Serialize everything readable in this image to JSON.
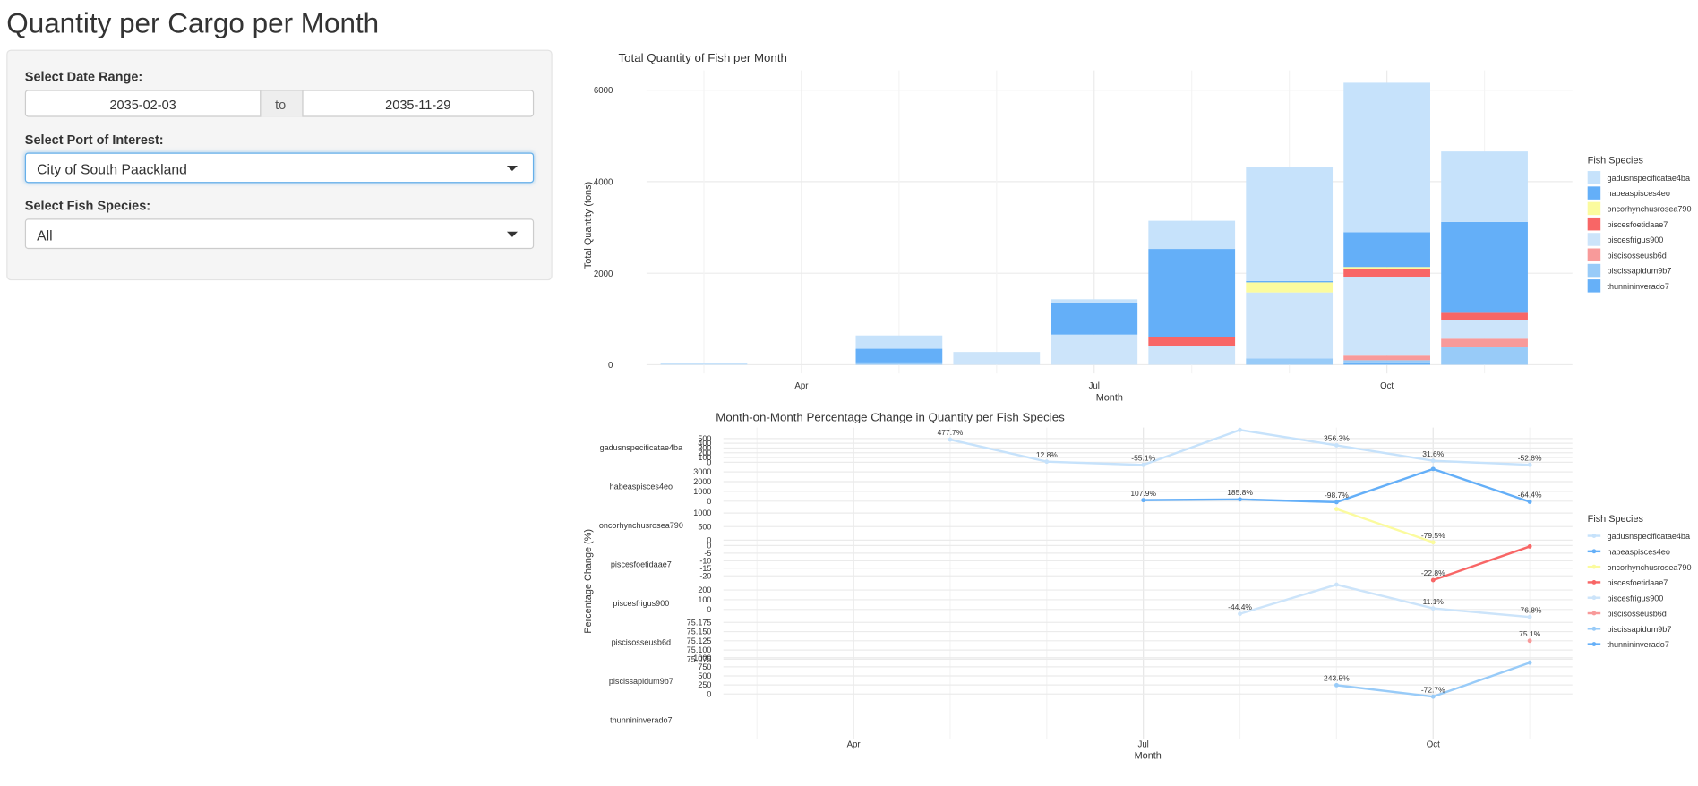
{
  "header": {
    "title": "Quantity per Cargo per Month"
  },
  "sidebar": {
    "date_range": {
      "label": "Select Date Range:",
      "start": "2035-02-03",
      "separator": "to",
      "end": "2035-11-29"
    },
    "port": {
      "label": "Select Port of Interest:",
      "value": "City of South Paackland"
    },
    "species": {
      "label": "Select Fish Species:",
      "value": "All"
    }
  },
  "chart_data": [
    {
      "type": "bar",
      "stacked": true,
      "title": "Total Quantity of Fish per Month",
      "x_label": "Month",
      "y_label": "Total Quantity (tons)",
      "categories": [
        null,
        "Apr",
        null,
        null,
        "Jul",
        null,
        null,
        "Oct",
        null
      ],
      "ylim": [
        -190,
        6430
      ],
      "yticks": [
        0,
        2000,
        4000,
        6000
      ],
      "grid": true,
      "legend": "right",
      "legend_title": "Fish Species",
      "series": [
        {
          "name": "gadusnspecificatae4ba",
          "color": "#c6e2fb",
          "values": [
            30,
            null,
            290,
            null,
            80,
            615,
            2480,
            3265,
            1540
          ]
        },
        {
          "name": "habeaspisces4eo",
          "color": "#64aff8",
          "values": [
            null,
            null,
            300,
            null,
            690,
            1915,
            30,
            760,
            1985
          ]
        },
        {
          "name": "oncorhynchusrosea790",
          "color": "#fbfb9e",
          "values": [
            null,
            null,
            null,
            null,
            null,
            null,
            220,
            45,
            null
          ]
        },
        {
          "name": "piscesfoetidaae7",
          "color": "#f86666",
          "values": [
            null,
            null,
            null,
            null,
            null,
            215,
            null,
            165,
            165
          ]
        },
        {
          "name": "piscesfrigus900",
          "color": "#cce4fa",
          "values": [
            null,
            null,
            null,
            280,
            660,
            400,
            1440,
            1725,
            400
          ]
        },
        {
          "name": "piscisosseusb6d",
          "color": "#f89a9a",
          "values": [
            null,
            null,
            null,
            null,
            null,
            null,
            null,
            100,
            190
          ]
        },
        {
          "name": "piscissapidum9b7",
          "color": "#98cbf8",
          "values": [
            null,
            null,
            50,
            null,
            null,
            null,
            140,
            50,
            380
          ]
        },
        {
          "name": "thunnininverado7",
          "color": "#66b0f8",
          "values": [
            null,
            null,
            null,
            null,
            null,
            null,
            null,
            50,
            null
          ]
        }
      ]
    },
    {
      "type": "line",
      "facets": true,
      "title": "Month-on-Month Percentage Change in Quantity per Fish Species",
      "x_label": "Month",
      "y_label": "Percentage Change (%)",
      "categories": [
        null,
        "Apr",
        null,
        null,
        "Jul",
        null,
        null,
        "Oct",
        null
      ],
      "grid": true,
      "legend": "right",
      "legend_title": "Fish Species",
      "series": [
        {
          "name": "gadusnspecificatae4ba",
          "color": "#c6e2fb",
          "ylim": [
            -90,
            730
          ],
          "yticks": [
            0,
            100,
            200,
            300,
            400,
            500
          ],
          "values": [
            null,
            null,
            477.7,
            12.8,
            -55.1,
            680,
            356.3,
            31.6,
            -52.8
          ],
          "value_labels": [
            null,
            null,
            "477.7%",
            "12.8%",
            "-55.1%",
            null,
            "356.3%",
            "31.6%",
            "-52.8%"
          ]
        },
        {
          "name": "habeaspisces4eo",
          "color": "#64aff8",
          "ylim": [
            -450,
            3550
          ],
          "yticks": [
            0,
            1000,
            2000,
            3000
          ],
          "values": [
            null,
            null,
            null,
            null,
            107.9,
            185.8,
            -98.7,
            3300,
            -64.4
          ],
          "value_labels": [
            null,
            null,
            null,
            null,
            "107.9%",
            "185.8%",
            "-98.7%",
            null,
            "-64.4%"
          ]
        },
        {
          "name": "oncorhynchusrosea790",
          "color": "#fbfb9e",
          "ylim": [
            -160,
            1280
          ],
          "yticks": [
            0,
            500,
            1000
          ],
          "values": [
            null,
            null,
            null,
            null,
            null,
            null,
            1150,
            -79.5,
            null
          ],
          "value_labels": [
            null,
            null,
            null,
            null,
            null,
            null,
            null,
            "-79.5%",
            null
          ]
        },
        {
          "name": "piscesfoetidaae7",
          "color": "#f86666",
          "ylim": [
            -25,
            0.7
          ],
          "yticks": [
            -20,
            -15,
            -10,
            -5,
            0
          ],
          "values": [
            null,
            null,
            null,
            null,
            null,
            null,
            null,
            -22.8,
            -0.6
          ],
          "value_labels": [
            null,
            null,
            null,
            null,
            null,
            null,
            null,
            "-22.8%",
            null
          ]
        },
        {
          "name": "piscesfrigus900",
          "color": "#cce4fa",
          "ylim": [
            -133,
            267
          ],
          "yticks": [
            0,
            100,
            200
          ],
          "values": [
            null,
            null,
            null,
            null,
            null,
            -44.4,
            255,
            11.1,
            -76.8
          ],
          "value_labels": [
            null,
            null,
            null,
            null,
            null,
            "-44.4%",
            null,
            "11.1%",
            "-76.8%"
          ]
        },
        {
          "name": "piscisosseusb6d",
          "color": "#f89a9a",
          "ylim": [
            75.069,
            75.175
          ],
          "yticks": [
            75.075,
            {
              "value": 75.1,
              "label": "75.100"
            },
            75.125,
            {
              "value": 75.15,
              "label": "75.150"
            },
            75.175
          ],
          "values": [
            null,
            null,
            null,
            null,
            null,
            null,
            null,
            null,
            75.125
          ],
          "value_labels": [
            null,
            null,
            null,
            null,
            null,
            null,
            null,
            null,
            "75.1%"
          ]
        },
        {
          "name": "piscissapidum9b7",
          "color": "#98cbf8",
          "ylim": [
            -176,
            900
          ],
          "yticks": [
            0,
            250,
            500,
            750,
            1000
          ],
          "values": [
            null,
            null,
            null,
            null,
            null,
            null,
            243.5,
            -72.7,
            865.4
          ],
          "value_labels": [
            null,
            null,
            null,
            null,
            null,
            null,
            "243.5%",
            "-72.7%",
            null
          ]
        },
        {
          "name": "thunnininverado7",
          "color": "#66b0f8",
          "values": [
            null,
            null,
            null,
            null,
            null,
            null,
            null,
            null,
            null
          ]
        }
      ]
    }
  ]
}
